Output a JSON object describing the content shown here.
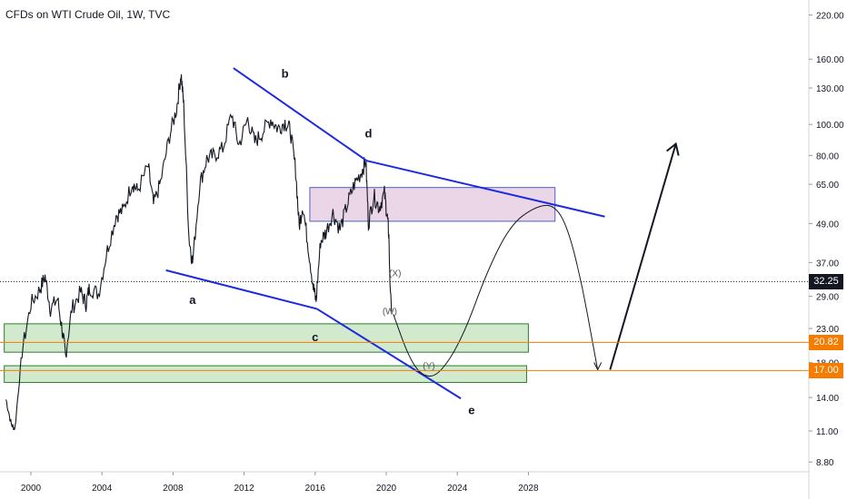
{
  "title": "CFDs on WTI Crude Oil, 1W, TVC",
  "chart_data": {
    "type": "line",
    "log_scale": true,
    "x_range": [
      1998.5,
      2036.3
    ],
    "y_range": [
      8.2,
      245
    ],
    "x_ticks": [
      "2000",
      "2004",
      "2008",
      "2012",
      "2016",
      "2020",
      "2024",
      "2028"
    ],
    "y_ticks": [
      "220.00",
      "160.00",
      "130.00",
      "100.00",
      "80.00",
      "65.00",
      "49.00",
      "37.00",
      "29.00",
      "23.00",
      "18.00",
      "14.00",
      "11.00",
      "8.80"
    ],
    "price_series": {
      "x": [
        1998.6,
        1998.9,
        1999.1,
        1999.5,
        2000.0,
        2000.5,
        2000.8,
        2001.1,
        2001.5,
        2001.8,
        2001.95,
        2002.3,
        2002.8,
        2003.1,
        2003.3,
        2003.8,
        2004.3,
        2004.8,
        2005.2,
        2005.7,
        2006.0,
        2006.6,
        2006.9,
        2007.3,
        2007.8,
        2008.2,
        2008.45,
        2008.6,
        2008.9,
        2009.1,
        2009.5,
        2009.9,
        2010.3,
        2010.8,
        2011.3,
        2011.7,
        2012.2,
        2012.6,
        2013.0,
        2013.5,
        2013.9,
        2014.3,
        2014.6,
        2014.9,
        2015.1,
        2015.3,
        2015.6,
        2015.9,
        2016.05,
        2016.3,
        2016.6,
        2017.0,
        2017.4,
        2017.8,
        2018.2,
        2018.6,
        2018.85,
        2019.0,
        2019.3,
        2019.6,
        2019.9,
        2020.05,
        2020.15,
        2020.2,
        2020.3
      ],
      "y": [
        13.8,
        11.5,
        11.2,
        19.5,
        27.5,
        30.5,
        33.5,
        26.5,
        28.5,
        22.0,
        19.0,
        26.5,
        30.0,
        27.5,
        31.0,
        29.5,
        40.5,
        52.0,
        54.0,
        66.0,
        62.0,
        74.0,
        56.0,
        66.0,
        92.0,
        112.0,
        145.0,
        115.0,
        44.0,
        37.0,
        65.0,
        78.0,
        80.0,
        84.0,
        108.0,
        86.0,
        104.0,
        88.0,
        94.0,
        104.0,
        97.0,
        102.0,
        96.0,
        72.0,
        48.0,
        56.0,
        42.0,
        31.0,
        28.0,
        43.0,
        46.0,
        53.0,
        47.0,
        56.0,
        65.0,
        71.0,
        77.0,
        49.0,
        60.0,
        55.0,
        61.0,
        52.0,
        45.0,
        33.0,
        26.0
      ]
    },
    "wave_labels": [
      {
        "text": "a",
        "x": 2009.1,
        "y": 27.5
      },
      {
        "text": "b",
        "x": 2014.3,
        "y": 140.0
      },
      {
        "text": "c",
        "x": 2016.0,
        "y": 21.0
      },
      {
        "text": "d",
        "x": 2019.0,
        "y": 91.0
      },
      {
        "text": "e",
        "x": 2024.8,
        "y": 12.4
      },
      {
        "text": "(X)",
        "x": 2020.5,
        "y": 33.5
      },
      {
        "text": "(W)",
        "x": 2020.2,
        "y": 25.5
      },
      {
        "text": "(Y)",
        "x": 2022.4,
        "y": 17.2
      }
    ],
    "trendlines": [
      {
        "name": "upper",
        "from": [
          2011.4,
          150.0
        ],
        "to": [
          2018.9,
          77.0
        ],
        "color": "#1e2adf"
      },
      {
        "name": "upper2",
        "from": [
          2018.9,
          77.0
        ],
        "to": [
          2032.3,
          51.5
        ],
        "color": "#1e2adf"
      },
      {
        "name": "lower",
        "from": [
          2007.6,
          35.0
        ],
        "to": [
          2016.1,
          26.5
        ],
        "color": "#1e2adf"
      },
      {
        "name": "lower2",
        "from": [
          2016.1,
          26.5
        ],
        "to": [
          2024.2,
          13.9
        ],
        "color": "#1e2adf"
      }
    ],
    "zones": [
      {
        "name": "resistance-zone",
        "x0": 2015.7,
        "x1": 2029.5,
        "y0": 49.8,
        "y1": 63.5,
        "fill": "#e8cfe3",
        "stroke": "#5060c0"
      },
      {
        "name": "support-zone-upper",
        "x0": 1998.5,
        "x1": 2028.0,
        "y0": 19.4,
        "y1": 23.8,
        "fill": "#c9e5c3",
        "stroke": "#2e7d32"
      },
      {
        "name": "support-zone-lower",
        "x0": 1998.5,
        "x1": 2027.9,
        "y0": 15.6,
        "y1": 17.6,
        "fill": "#c9e5c3",
        "stroke": "#2e7d32"
      }
    ],
    "projection": {
      "wave_path": [
        [
          2020.4,
          25.5
        ],
        [
          2021.3,
          18.5
        ],
        [
          2022.1,
          16.2
        ],
        [
          2023.0,
          16.5
        ],
        [
          2024.3,
          21.5
        ],
        [
          2025.7,
          35.0
        ],
        [
          2027.0,
          48.5
        ],
        [
          2028.3,
          55.0
        ],
        [
          2029.4,
          56.5
        ],
        [
          2030.2,
          48.0
        ],
        [
          2031.0,
          32.0
        ],
        [
          2031.6,
          21.0
        ],
        [
          2031.9,
          17.1
        ]
      ],
      "arrow_up": {
        "from": [
          2032.6,
          17.1
        ],
        "to": [
          2036.3,
          87.0
        ]
      }
    },
    "h_lines": [
      {
        "name": "current-price",
        "value": 32.25,
        "color": "#131722",
        "style": "dotted"
      },
      {
        "name": "level-20",
        "value": 20.82,
        "color": "#f57c00",
        "style": "solid"
      },
      {
        "name": "level-17",
        "value": 17.0,
        "color": "#f57c00",
        "style": "solid"
      }
    ],
    "price_badges": [
      {
        "label": "32.25",
        "value": 32.25,
        "color": "#131722"
      },
      {
        "label": "20.82",
        "value": 20.82,
        "color": "#f57c00"
      },
      {
        "label": "17.00",
        "value": 17.0,
        "color": "#f57c00"
      }
    ]
  }
}
